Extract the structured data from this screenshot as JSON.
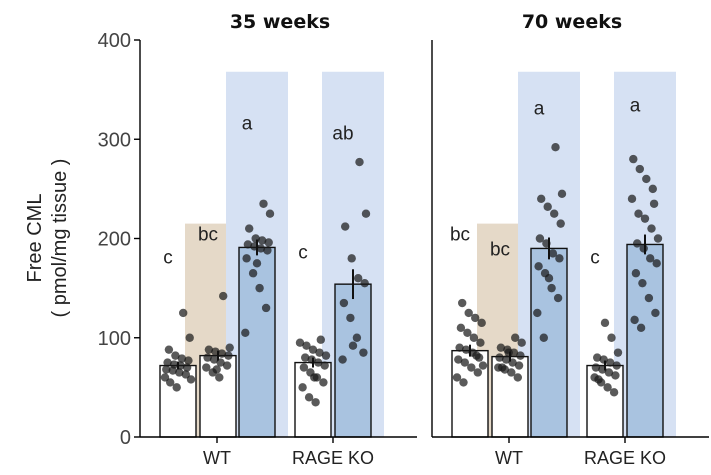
{
  "chart_data": {
    "type": "bar",
    "ylabel_line1": "Free CML",
    "ylabel_line2": "( pmol/mg tissue )",
    "ylim": [
      0,
      400
    ],
    "yticks": [
      "0",
      "100",
      "200",
      "300",
      "400"
    ],
    "categories": [
      "WT",
      "RAGE KO"
    ],
    "colors": {
      "white_bar": "#ffffff",
      "blue_bar": "#a9c3e0",
      "tan_shade": "#e3d6c3",
      "blue_shade": "#d6e1f3",
      "point": "#1a1a1a"
    },
    "panels": [
      {
        "title": "35 weeks",
        "bars": [
          {
            "category": "WT",
            "fill": "white",
            "value": 72,
            "sem": 4,
            "letter": "c",
            "letter_y": 175,
            "points": [
              60,
              63,
              65,
              67,
              68,
              70,
              72,
              73,
              75,
              77,
              79,
              82,
              88,
              100,
              125,
              50,
              55,
              58
            ]
          },
          {
            "category": "WT",
            "fill": "white",
            "value": 82,
            "sem": 5,
            "letter": "bc",
            "letter_y": 198,
            "shade": "tan",
            "points": [
              60,
              65,
              70,
              72,
              75,
              78,
              80,
              82,
              84,
              86,
              88,
              90,
              142,
              68
            ]
          },
          {
            "category": "WT",
            "fill": "blue",
            "value": 191,
            "sem": 8,
            "letter": "a",
            "letter_y": 310,
            "shade": "blue",
            "points": [
              105,
              130,
              150,
              165,
              180,
              188,
              190,
              192,
              194,
              196,
              198,
              200,
              210,
              225,
              235,
              175
            ]
          },
          {
            "category": "RAGE KO",
            "fill": "white",
            "value": 75,
            "sem": 5,
            "letter": "c",
            "letter_y": 180,
            "points": [
              35,
              40,
              50,
              55,
              60,
              65,
              70,
              72,
              75,
              78,
              80,
              82,
              85,
              88,
              92,
              95,
              98,
              60
            ]
          },
          {
            "category": "RAGE KO",
            "fill": "blue",
            "value": 154,
            "sem": 15,
            "letter": "ab",
            "letter_y": 300,
            "shade": "blue",
            "points": [
              78,
              85,
              100,
              120,
              135,
              155,
              160,
              180,
              212,
              225,
              277,
              92
            ]
          }
        ]
      },
      {
        "title": "70 weeks",
        "bars": [
          {
            "category": "WT",
            "fill": "white",
            "value": 87,
            "sem": 6,
            "letter": "bc",
            "letter_y": 198,
            "points": [
              55,
              60,
              65,
              70,
              75,
              78,
              80,
              85,
              88,
              90,
              95,
              100,
              105,
              110,
              115,
              120,
              125,
              135,
              72,
              82
            ]
          },
          {
            "category": "WT",
            "fill": "white",
            "value": 81,
            "sem": 5,
            "letter": "bc",
            "letter_y": 183,
            "shade": "tan",
            "points": [
              60,
              65,
              68,
              70,
              72,
              75,
              78,
              80,
              82,
              85,
              88,
              90,
              95,
              100,
              85,
              70
            ]
          },
          {
            "category": "WT",
            "fill": "blue",
            "value": 190,
            "sem": 11,
            "letter": "a",
            "letter_y": 325,
            "shade": "blue",
            "points": [
              100,
              125,
              140,
              150,
              165,
              172,
              180,
              185,
              195,
              200,
              215,
              225,
              232,
              240,
              245,
              292,
              160
            ]
          },
          {
            "category": "RAGE KO",
            "fill": "white",
            "value": 72,
            "sem": 5,
            "letter": "c",
            "letter_y": 175,
            "points": [
              45,
              50,
              55,
              60,
              62,
              65,
              68,
              70,
              72,
              75,
              78,
              80,
              85,
              100,
              115,
              58
            ]
          },
          {
            "category": "RAGE KO",
            "fill": "blue",
            "value": 194,
            "sem": 10,
            "letter": "a",
            "letter_y": 328,
            "shade": "blue",
            "points": [
              110,
              118,
              125,
              140,
              155,
              165,
              175,
              180,
              190,
              195,
              200,
              210,
              220,
              225,
              240,
              250,
              260,
              270,
              280,
              235
            ]
          }
        ]
      }
    ]
  }
}
